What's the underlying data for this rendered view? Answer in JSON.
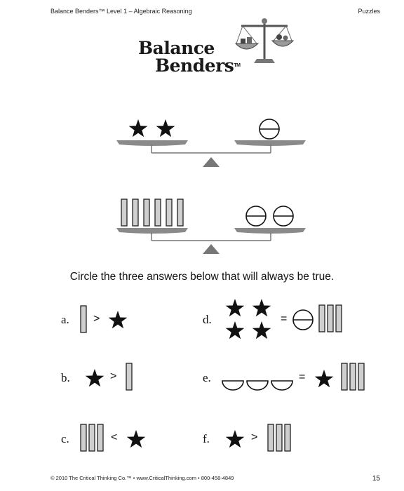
{
  "header": {
    "left": "Balance Benders™ Level 1 – Algebraic Reasoning",
    "right": "Puzzles"
  },
  "logo": {
    "line1": "Balance",
    "line2": "Benders",
    "tm": "TM"
  },
  "instruction": "Circle the three answers below that will always be true.",
  "answers": [
    {
      "letter": "a.",
      "op": ">"
    },
    {
      "letter": "b.",
      "op": ">"
    },
    {
      "letter": "c.",
      "op": "<"
    },
    {
      "letter": "d.",
      "op": "="
    },
    {
      "letter": "e.",
      "op": "="
    },
    {
      "letter": "f.",
      "op": ">"
    }
  ],
  "footer": {
    "text": "© 2010 The Critical Thinking Co.™ • www.CriticalThinking.com • 800-458-4849",
    "page": "15"
  },
  "colors": {
    "ink": "#111111",
    "bar_fill": "#cfcfcf",
    "beam": "#8a8a8a"
  },
  "icons": [
    "scale-logo-icon",
    "star-icon",
    "bar-icon",
    "circle-icon",
    "bowl-icon"
  ]
}
